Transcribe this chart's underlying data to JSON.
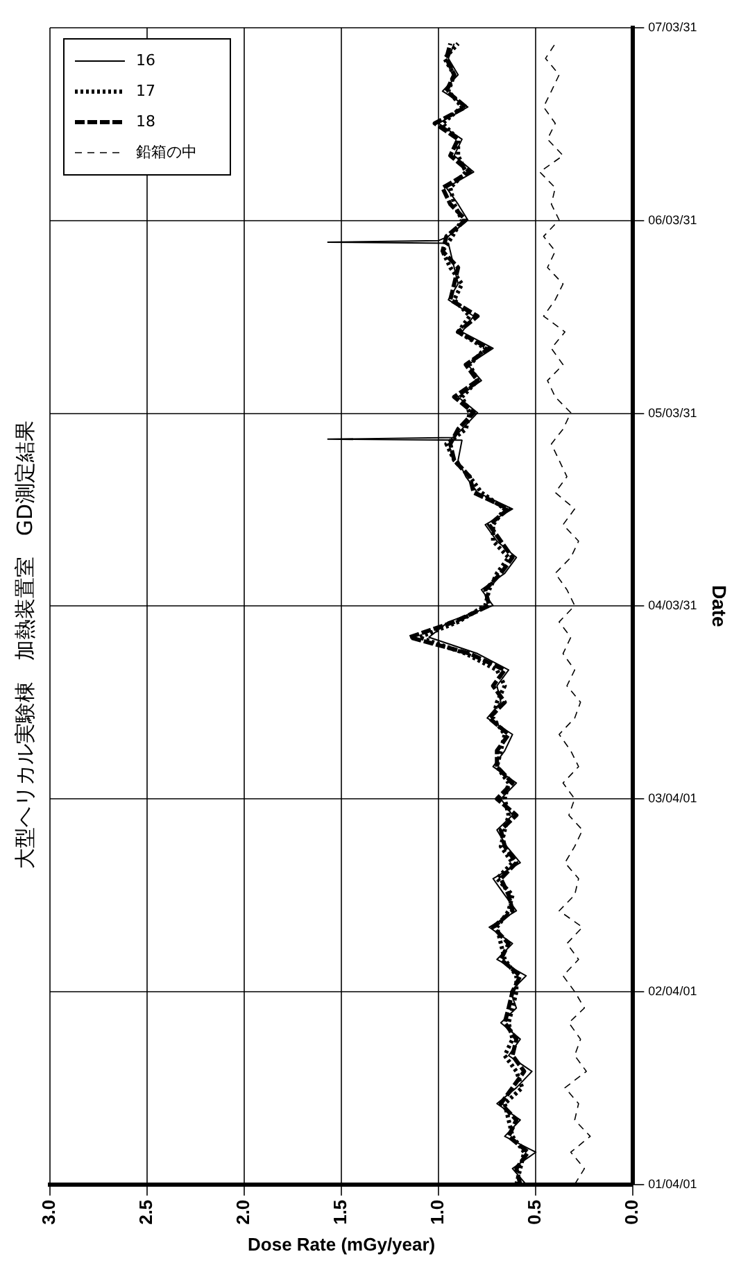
{
  "chart_data": {
    "type": "line",
    "title": "大型ヘリカル実験棟　加熱装置室　GD測定結果",
    "xlabel": "Dose Rate (mGy/year)",
    "ylabel": "Date",
    "x": [
      "2001-04",
      "2001-05",
      "2001-06",
      "2001-07",
      "2001-08",
      "2001-09",
      "2001-10",
      "2001-11",
      "2001-12",
      "2002-01",
      "2002-02",
      "2002-03",
      "2002-04",
      "2002-05",
      "2002-06",
      "2002-07",
      "2002-08",
      "2002-09",
      "2002-10",
      "2002-11",
      "2002-12",
      "2003-01",
      "2003-02",
      "2003-03",
      "2003-04",
      "2003-05",
      "2003-06",
      "2003-07",
      "2003-08",
      "2003-09",
      "2003-10",
      "2003-11",
      "2003-12",
      "2004-01",
      "2004-02",
      "2004-03",
      "2004-04",
      "2004-05",
      "2004-06",
      "2004-07",
      "2004-08",
      "2004-09",
      "2004-10",
      "2004-11",
      "2004-12",
      "2005-01",
      "2005-02",
      "2005-03",
      "2005-04",
      "2005-05",
      "2005-06",
      "2005-07",
      "2005-08",
      "2005-09",
      "2005-10",
      "2005-11",
      "2005-12",
      "2006-01",
      "2006-02",
      "2006-03",
      "2006-04",
      "2006-05",
      "2006-06",
      "2006-07",
      "2006-08",
      "2006-09",
      "2006-10",
      "2006-11",
      "2006-12",
      "2007-01",
      "2007-02",
      "2007-03"
    ],
    "series": [
      {
        "name": "16",
        "color": "#000000",
        "line_style": "solid",
        "x": [
          "2001-04",
          "2001-05",
          "2001-06",
          "2001-07",
          "2001-08",
          "2001-09",
          "2001-10",
          "2001-11",
          "2001-12",
          "2002-01",
          "2002-02",
          "2002-03",
          "2002-04",
          "2002-05",
          "2002-06",
          "2002-07",
          "2002-08",
          "2002-09",
          "2002-10",
          "2002-11",
          "2002-12",
          "2003-01",
          "2003-02",
          "2003-03",
          "2003-04",
          "2003-05",
          "2003-06",
          "2003-07",
          "2003-08",
          "2003-09",
          "2003-10",
          "2003-11",
          "2003-12",
          "2004-01",
          "2004-02",
          "2004-03",
          "2004-04",
          "2004-05",
          "2004-06",
          "2004-07",
          "2004-08",
          "2004-09",
          "2004-10",
          "2004-11",
          "2004-12",
          "2005-01",
          "2005-02-08",
          "2005-02-10",
          "2005-02-13",
          "2005-03",
          "2005-04",
          "2005-05",
          "2005-06",
          "2005-07",
          "2005-08",
          "2005-09",
          "2005-10",
          "2005-11",
          "2005-12",
          "2006-01",
          "2006-02-16",
          "2006-02-18",
          "2006-02-21",
          "2006-03",
          "2006-04",
          "2006-05",
          "2006-06",
          "2006-07",
          "2006-08",
          "2006-09",
          "2006-10",
          "2006-11",
          "2006-12",
          "2007-01",
          "2007-02",
          "2007-03"
        ],
        "values": [
          0.55,
          0.62,
          0.5,
          0.66,
          0.58,
          0.7,
          0.6,
          0.52,
          0.64,
          0.58,
          0.68,
          0.6,
          0.63,
          0.55,
          0.7,
          0.62,
          0.74,
          0.6,
          0.66,
          0.72,
          0.58,
          0.65,
          0.7,
          0.62,
          0.68,
          0.6,
          0.72,
          0.66,
          0.62,
          0.75,
          0.68,
          0.7,
          0.64,
          0.8,
          1.05,
          0.95,
          0.72,
          0.78,
          0.66,
          0.6,
          0.7,
          0.76,
          0.62,
          0.8,
          0.86,
          0.9,
          0.88,
          1.57,
          0.92,
          0.88,
          0.8,
          0.9,
          0.78,
          0.85,
          0.72,
          0.88,
          0.82,
          0.95,
          0.9,
          0.92,
          0.95,
          1.57,
          1.0,
          0.95,
          0.85,
          0.9,
          0.96,
          0.82,
          0.92,
          0.88,
          1.0,
          0.85,
          0.98,
          0.9,
          0.95,
          0.92
        ]
      },
      {
        "name": "17",
        "color": "#000000",
        "line_style": "dotted",
        "values": [
          0.6,
          0.58,
          0.56,
          0.62,
          0.64,
          0.66,
          0.57,
          0.6,
          0.66,
          0.62,
          0.64,
          0.62,
          0.6,
          0.6,
          0.66,
          0.68,
          0.7,
          0.64,
          0.62,
          0.7,
          0.62,
          0.68,
          0.66,
          0.64,
          0.66,
          0.64,
          0.7,
          0.68,
          0.66,
          0.72,
          0.7,
          0.66,
          0.7,
          0.86,
          1.1,
          0.9,
          0.76,
          0.74,
          0.7,
          0.64,
          0.72,
          0.72,
          0.66,
          0.78,
          0.84,
          0.92,
          0.96,
          0.86,
          0.84,
          0.88,
          0.8,
          0.84,
          0.76,
          0.9,
          0.84,
          0.92,
          0.88,
          0.94,
          0.98,
          0.93,
          0.88,
          0.92,
          0.94,
          0.86,
          0.9,
          0.9,
          0.98,
          0.88,
          0.95,
          0.92,
          0.97,
          0.9
        ]
      },
      {
        "name": "18",
        "color": "#000000",
        "line_style": "dashed",
        "values": [
          0.58,
          0.6,
          0.54,
          0.64,
          0.6,
          0.68,
          0.62,
          0.56,
          0.62,
          0.6,
          0.66,
          0.64,
          0.62,
          0.58,
          0.68,
          0.64,
          0.72,
          0.62,
          0.64,
          0.68,
          0.6,
          0.66,
          0.68,
          0.6,
          0.7,
          0.62,
          0.7,
          0.7,
          0.64,
          0.74,
          0.66,
          0.72,
          0.66,
          0.84,
          1.15,
          0.92,
          0.74,
          0.76,
          0.68,
          0.62,
          0.68,
          0.74,
          0.64,
          0.82,
          0.84,
          0.92,
          0.94,
          0.9,
          0.82,
          0.92,
          0.8,
          0.86,
          0.74,
          0.9,
          0.8,
          0.94,
          0.92,
          0.9,
          0.98,
          0.96,
          0.86,
          0.94,
          0.98,
          0.84,
          0.94,
          0.9,
          1.02,
          0.86,
          0.96,
          0.92,
          0.96,
          0.94
        ]
      },
      {
        "name": "鉛箱の中",
        "color": "#000000",
        "line_style": "dashed",
        "values": [
          0.3,
          0.25,
          0.32,
          0.22,
          0.3,
          0.28,
          0.35,
          0.24,
          0.3,
          0.27,
          0.33,
          0.25,
          0.3,
          0.36,
          0.28,
          0.34,
          0.26,
          0.38,
          0.3,
          0.28,
          0.35,
          0.3,
          0.26,
          0.33,
          0.3,
          0.36,
          0.28,
          0.32,
          0.38,
          0.3,
          0.27,
          0.34,
          0.3,
          0.36,
          0.32,
          0.38,
          0.3,
          0.34,
          0.4,
          0.32,
          0.28,
          0.36,
          0.3,
          0.4,
          0.34,
          0.38,
          0.42,
          0.36,
          0.32,
          0.4,
          0.44,
          0.36,
          0.42,
          0.35,
          0.46,
          0.4,
          0.36,
          0.44,
          0.4,
          0.46,
          0.38,
          0.42,
          0.4,
          0.48,
          0.36,
          0.44,
          0.4,
          0.46,
          0.42,
          0.38,
          0.45,
          0.4
        ]
      }
    ],
    "orientation": "horizontal",
    "ylim": [
      "2001-04-01",
      "2007-03-31"
    ],
    "yticks": [
      {
        "value": "2001-04-01",
        "label": "01/04/01"
      },
      {
        "value": "2002-04-01",
        "label": "02/04/01"
      },
      {
        "value": "2003-04-01",
        "label": "03/04/01"
      },
      {
        "value": "2004-03-31",
        "label": "04/03/31"
      },
      {
        "value": "2005-03-31",
        "label": "05/03/31"
      },
      {
        "value": "2006-03-31",
        "label": "06/03/31"
      },
      {
        "value": "2007-03-31",
        "label": "07/03/31"
      }
    ],
    "xlim": [
      3,
      0
    ],
    "xticks": [
      {
        "value": 0,
        "label": "0.0"
      },
      {
        "value": 0.5,
        "label": "0.5"
      },
      {
        "value": 1,
        "label": "1.0"
      },
      {
        "value": 1.5,
        "label": "1.5"
      },
      {
        "value": 2,
        "label": "2.0"
      },
      {
        "value": 2.5,
        "label": "2.5"
      },
      {
        "value": 3,
        "label": "3.0"
      }
    ],
    "grid": true,
    "legend": "top left",
    "marker": "none"
  }
}
